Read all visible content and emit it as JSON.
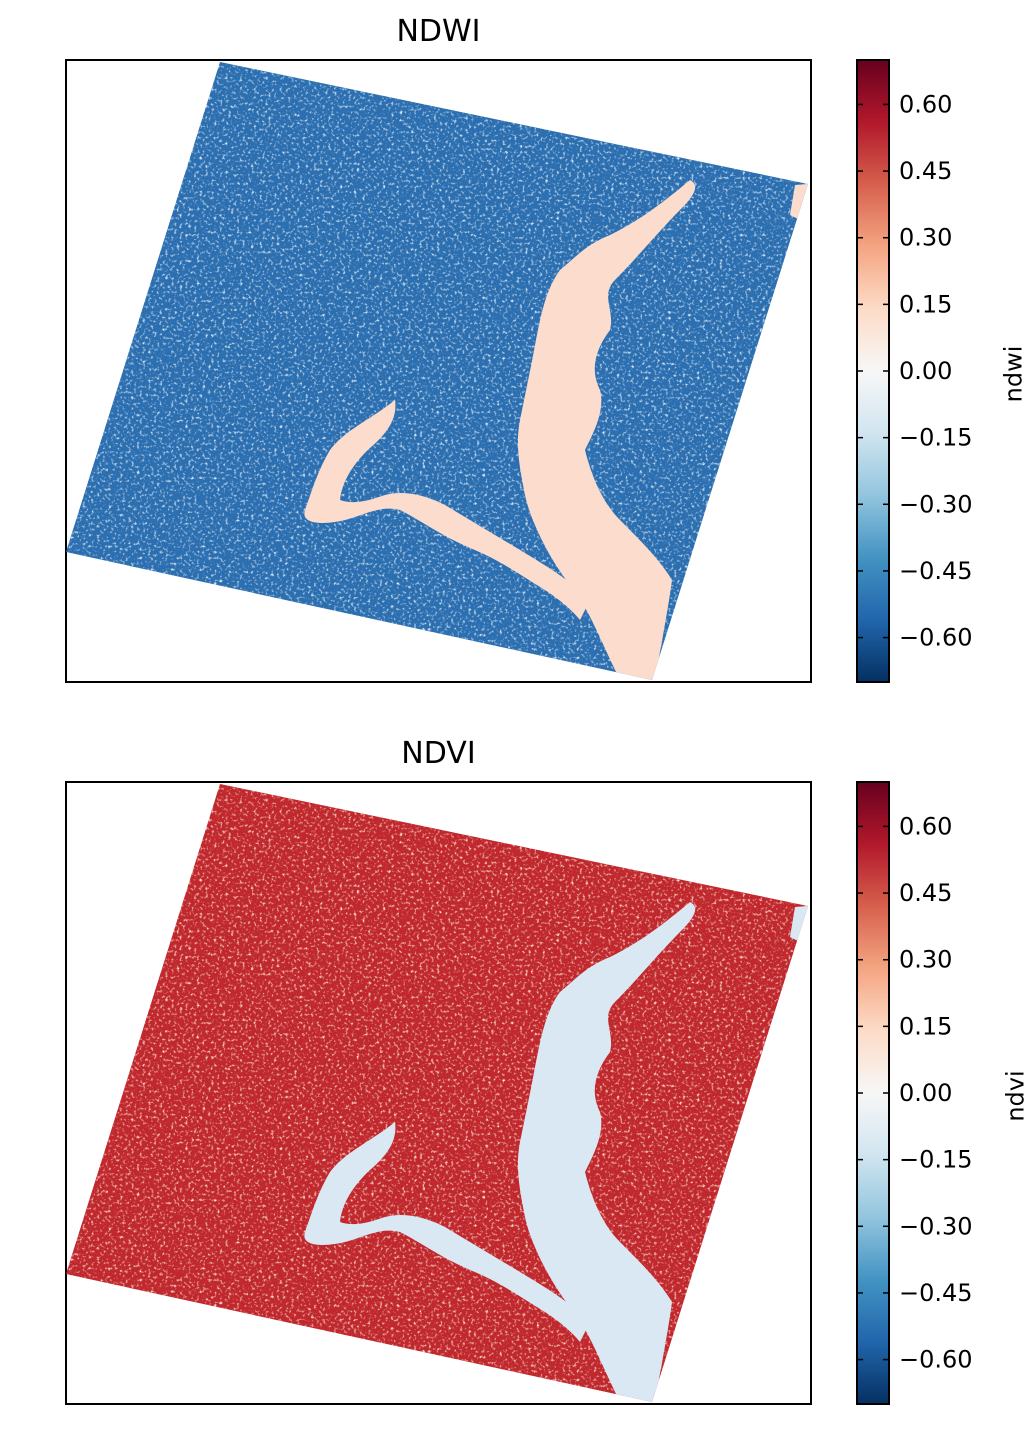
{
  "chart_data": [
    {
      "type": "heatmap",
      "title": "NDWI",
      "colorbar_label": "ndwi",
      "colormap": "RdBu_r",
      "colorbar_range": [
        -0.7,
        0.7
      ],
      "colorbar_ticks": [
        "0.60",
        "0.45",
        "0.30",
        "0.15",
        "0.00",
        "−0.15",
        "−0.30",
        "−0.45",
        "−0.60"
      ],
      "colorbar_tick_values": [
        0.6,
        0.45,
        0.3,
        0.15,
        0.0,
        -0.15,
        -0.3,
        -0.45,
        -0.6
      ],
      "land_color": "#2c6fb1",
      "land_speckle_color": "#c8dcec",
      "water_color": "#fbdccd",
      "axes_ticks": "none"
    },
    {
      "type": "heatmap",
      "title": "NDVI",
      "colorbar_label": "ndvi",
      "colormap": "RdBu_r",
      "colorbar_range": [
        -0.7,
        0.7
      ],
      "colorbar_ticks": [
        "0.60",
        "0.45",
        "0.30",
        "0.15",
        "0.00",
        "−0.15",
        "−0.30",
        "−0.45",
        "−0.60"
      ],
      "colorbar_tick_values": [
        0.6,
        0.45,
        0.3,
        0.15,
        0.0,
        -0.15,
        -0.3,
        -0.45,
        -0.6
      ],
      "land_color": "#c0282d",
      "land_speckle_color": "#f7cdb5",
      "water_color": "#d9e8f2",
      "axes_ticks": "none"
    }
  ]
}
